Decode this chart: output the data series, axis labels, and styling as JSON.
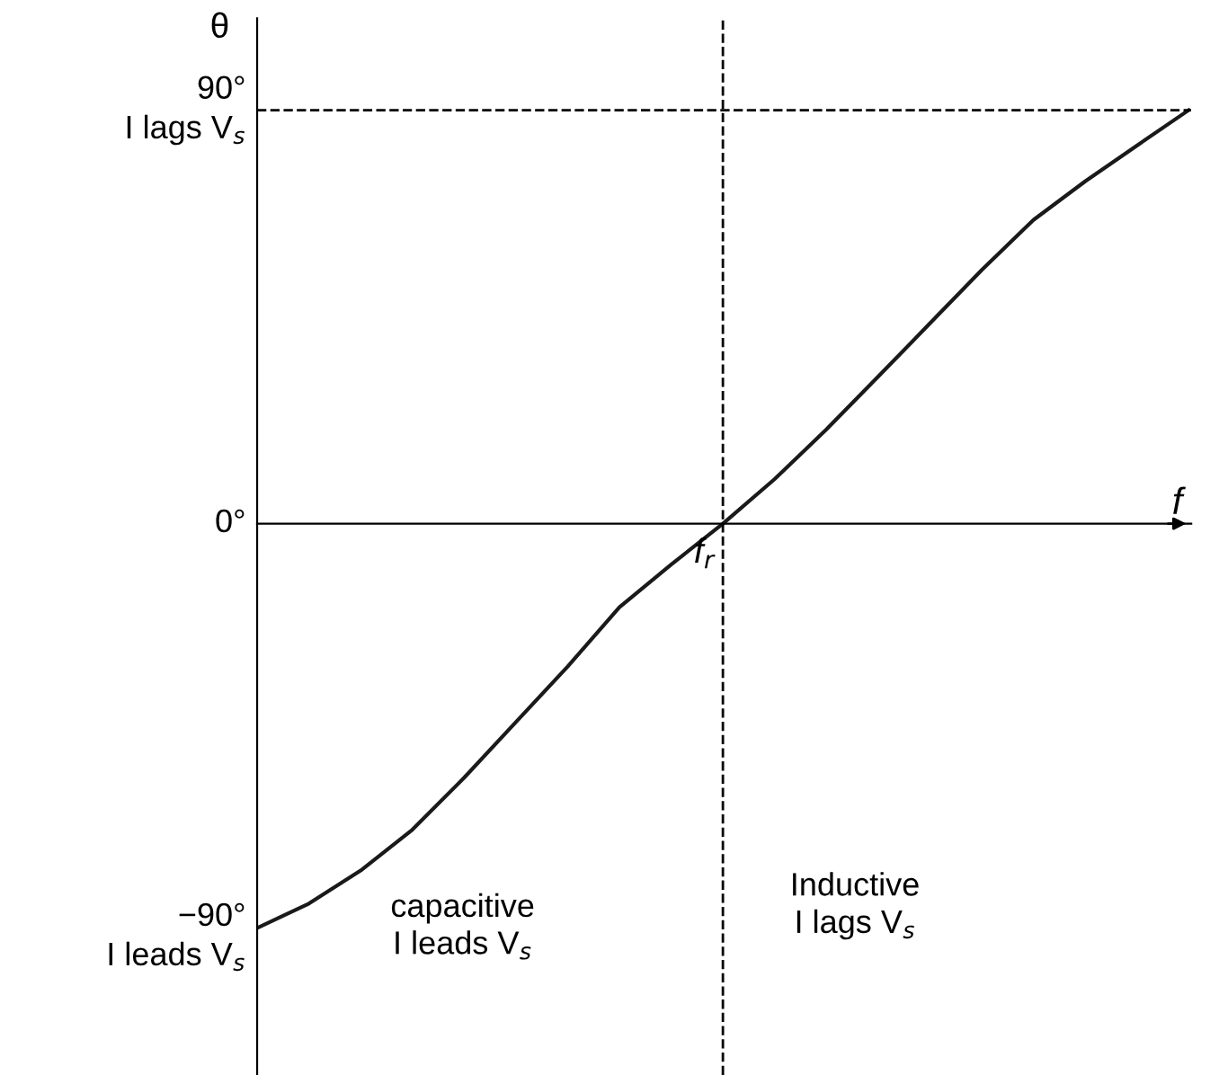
{
  "chart_data": {
    "type": "line",
    "ylabel": "θ",
    "xlabel": "f",
    "categories": [
      null,
      null,
      null,
      null,
      null,
      null,
      null,
      null,
      null,
      "f$_{r}$",
      null,
      null,
      null,
      null,
      null,
      null,
      null,
      null,
      null
    ],
    "series": [
      {
        "color": "#1a1a1a",
        "values": [
          -88,
          -82.7,
          -75.5,
          -66.6,
          -55.3,
          -43.2,
          -31.1,
          -18.2,
          -8.9,
          0,
          9.7,
          20.5,
          32.0,
          43.6,
          55.2,
          66.1,
          74.5,
          82.3,
          90
        ]
      }
    ],
    "ylim": [
      -120,
      110
    ],
    "yticks": [
      {
        "value": 90,
        "label": "90°\nI lags V$_{s}$"
      },
      {
        "value": 0,
        "label": "0°"
      },
      {
        "value": -90,
        "label": "−90°\nI leads V$_{s}$"
      }
    ],
    "ref_lines": [
      {
        "axis": "x",
        "value": "f$_{r}$",
        "line_style": "dashed"
      },
      {
        "axis": "y",
        "value": 90,
        "line_style": "dashed"
      }
    ],
    "annotations": [
      "capacitive\nI leads V$_{s}$",
      "Inductive\nI lags V$_{s}$"
    ],
    "grid": false,
    "legend": false,
    "marker": "none",
    "line_style": "solid"
  }
}
